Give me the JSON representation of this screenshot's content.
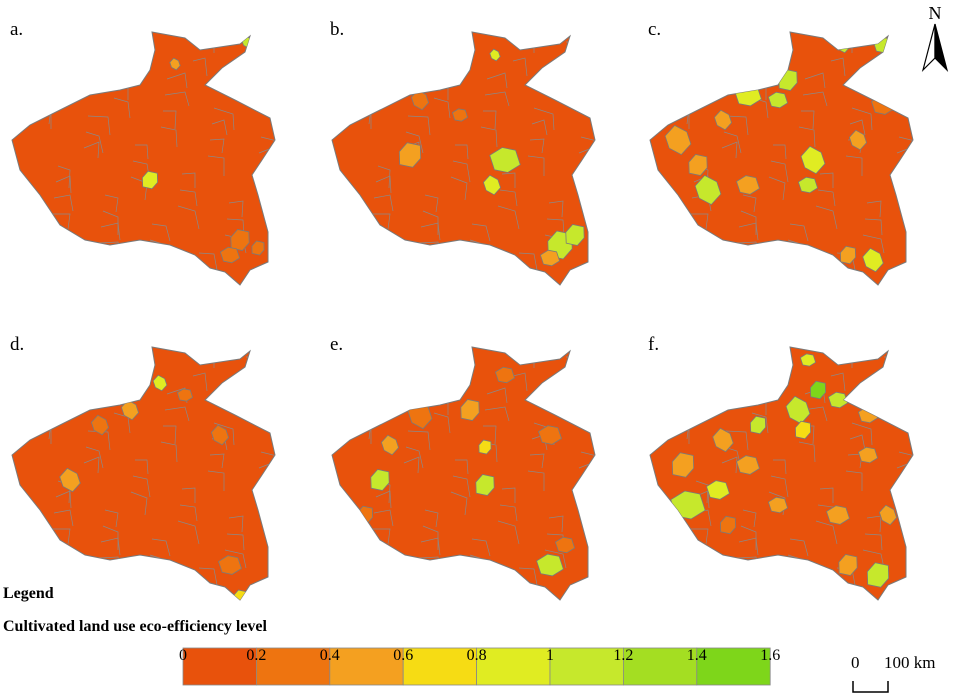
{
  "panels": [
    {
      "label": "a."
    },
    {
      "label": "b."
    },
    {
      "label": "c."
    },
    {
      "label": "d."
    },
    {
      "label": "e."
    },
    {
      "label": "f."
    }
  ],
  "legend": {
    "heading": "Legend",
    "title": "Cultivated land use eco-efficiency level",
    "bins": [
      {
        "color": "#e8520c"
      },
      {
        "color": "#ee7410"
      },
      {
        "color": "#f4a020"
      },
      {
        "color": "#f6dc14"
      },
      {
        "color": "#e0ec22"
      },
      {
        "color": "#c6e82c"
      },
      {
        "color": "#a4de22"
      },
      {
        "color": "#7ed61a"
      }
    ],
    "ticks": [
      "0",
      "0.2",
      "0.4",
      "0.6",
      "0.8",
      "1",
      "1.2",
      "1.4",
      "1.6"
    ]
  },
  "scale_bar": {
    "labels": [
      "0",
      "100 km"
    ]
  },
  "north_arrow": {
    "label": "N"
  }
}
